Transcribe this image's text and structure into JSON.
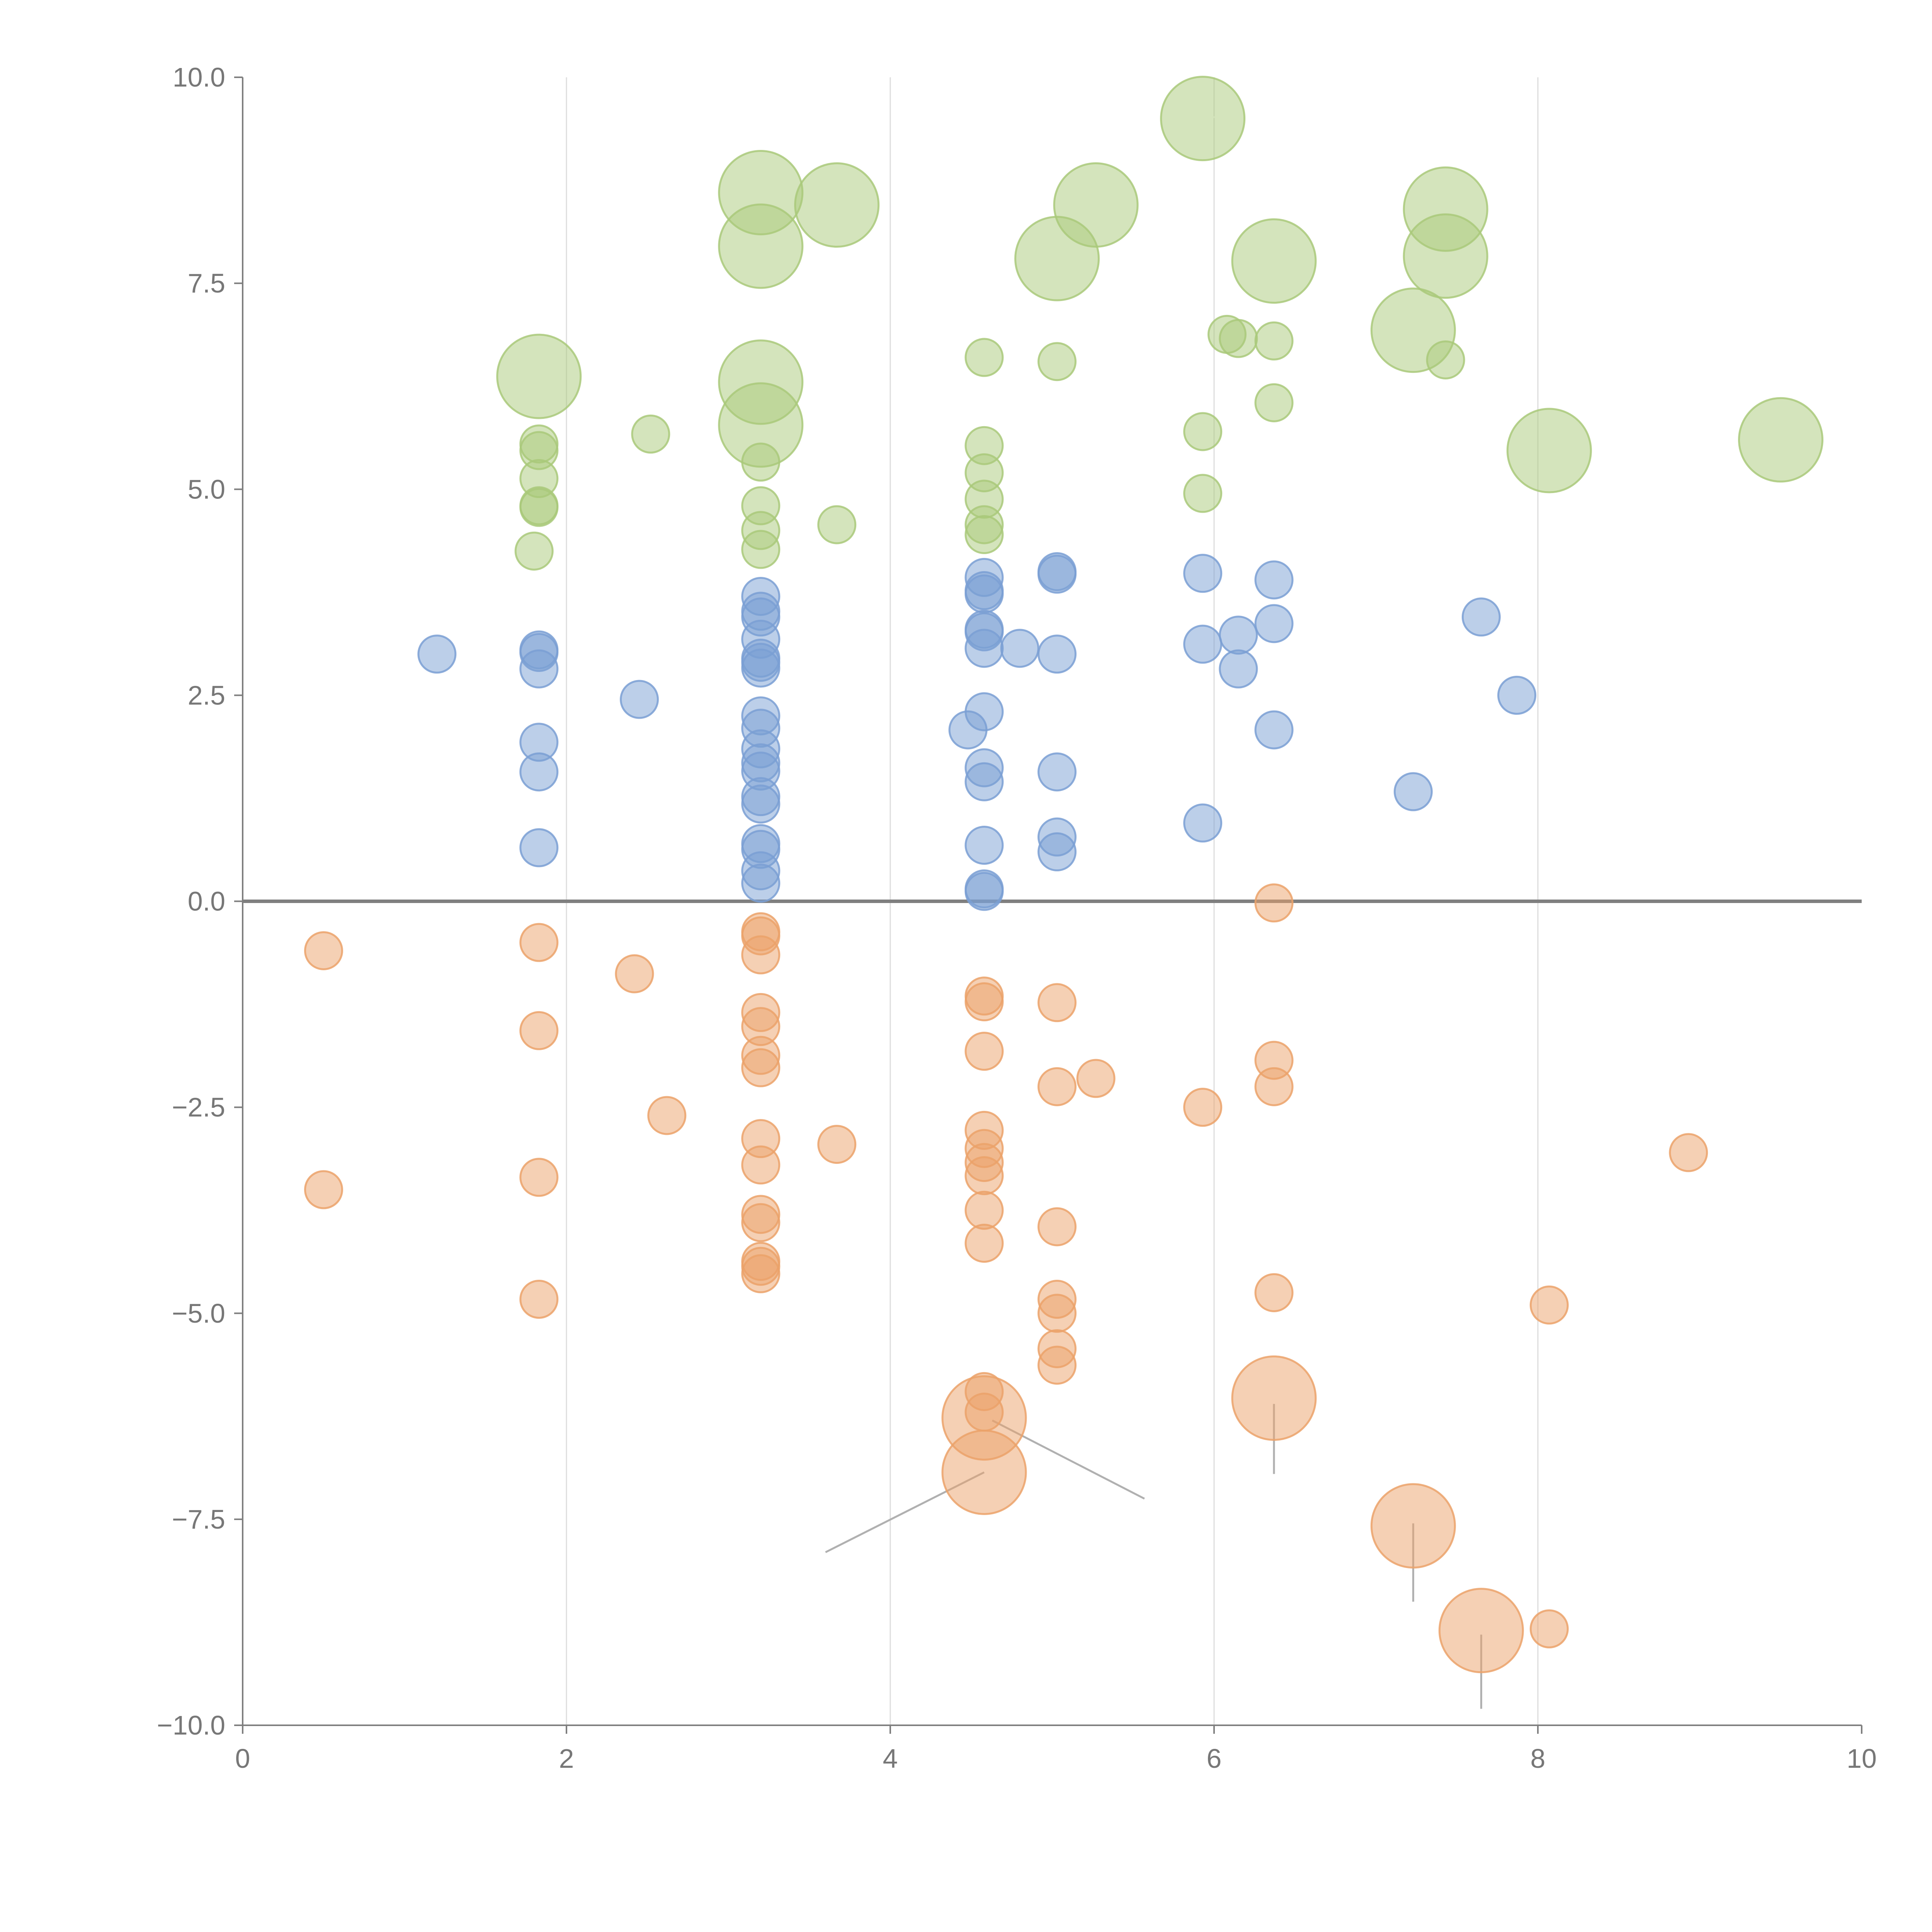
{
  "colors": {
    "green": "#a9c97a",
    "blue": "#7a9fd4",
    "orange": "#eba26a",
    "axis": "#7f7f7f",
    "grid": "#dddddd",
    "text": "#777777"
  },
  "chart_data": {
    "type": "scatter",
    "title": "",
    "xlabel": "",
    "ylabel": "",
    "xlim": [
      0,
      10
    ],
    "ylim": [
      -10,
      10
    ],
    "x_ticks": [
      "0",
      "2",
      "4",
      "6",
      "8",
      "10"
    ],
    "y_ticks": [
      "10.0",
      "7.5",
      "5.0",
      "2.5",
      "0.0",
      "−2.5",
      "−5.0",
      "−7.5",
      "−10.0"
    ],
    "grid": "vertical",
    "zero_line": true,
    "series": [
      {
        "name": "green",
        "color_key": "green",
        "points": [
          [
            5.93,
            9.5,
            3
          ],
          [
            3.2,
            8.6,
            3
          ],
          [
            3.67,
            8.45,
            3
          ],
          [
            5.27,
            8.45,
            3
          ],
          [
            7.43,
            8.4,
            3
          ],
          [
            3.2,
            7.95,
            3
          ],
          [
            5.03,
            7.8,
            3
          ],
          [
            6.37,
            7.77,
            3
          ],
          [
            7.43,
            7.83,
            3
          ],
          [
            1.83,
            6.37,
            3
          ],
          [
            3.2,
            6.3,
            3
          ],
          [
            7.23,
            6.93,
            3
          ],
          [
            3.2,
            5.78,
            3
          ],
          [
            8.07,
            5.47,
            3
          ],
          [
            9.5,
            5.6,
            3
          ],
          [
            6.08,
            6.88,
            1
          ],
          [
            6.15,
            6.83,
            1
          ],
          [
            6.37,
            6.8,
            1
          ],
          [
            4.58,
            6.6,
            1
          ],
          [
            5.03,
            6.55,
            1
          ],
          [
            7.43,
            6.57,
            1
          ],
          [
            6.37,
            6.05,
            1
          ],
          [
            2.52,
            5.67,
            1
          ],
          [
            5.93,
            5.7,
            1
          ],
          [
            1.83,
            5.55,
            1
          ],
          [
            1.83,
            5.47,
            1
          ],
          [
            4.58,
            5.53,
            1
          ],
          [
            3.2,
            5.33,
            1
          ],
          [
            4.58,
            5.2,
            1
          ],
          [
            1.83,
            5.13,
            1
          ],
          [
            5.93,
            4.95,
            1
          ],
          [
            4.58,
            4.88,
            1
          ],
          [
            1.83,
            4.8,
            1
          ],
          [
            1.83,
            4.78,
            1
          ],
          [
            3.2,
            4.8,
            1
          ],
          [
            3.67,
            4.57,
            1
          ],
          [
            4.58,
            4.57,
            1
          ],
          [
            3.2,
            4.5,
            1
          ],
          [
            4.58,
            4.45,
            1
          ],
          [
            3.2,
            4.27,
            1
          ],
          [
            1.8,
            4.25,
            1
          ]
        ]
      },
      {
        "name": "blue",
        "color_key": "blue",
        "points": [
          [
            5.03,
            4.0,
            1
          ],
          [
            5.03,
            3.97,
            1
          ],
          [
            5.93,
            3.98,
            1
          ],
          [
            4.58,
            3.93,
            1
          ],
          [
            6.37,
            3.9,
            1
          ],
          [
            4.58,
            3.77,
            1
          ],
          [
            4.58,
            3.73,
            1
          ],
          [
            3.2,
            3.7,
            1
          ],
          [
            3.2,
            3.52,
            1
          ],
          [
            3.2,
            3.45,
            1
          ],
          [
            7.65,
            3.45,
            1
          ],
          [
            6.37,
            3.37,
            1
          ],
          [
            4.58,
            3.3,
            1
          ],
          [
            4.58,
            3.27,
            1
          ],
          [
            6.15,
            3.23,
            1
          ],
          [
            3.2,
            3.18,
            1
          ],
          [
            5.93,
            3.12,
            1
          ],
          [
            4.58,
            3.07,
            1
          ],
          [
            4.8,
            3.07,
            1
          ],
          [
            1.83,
            3.05,
            1
          ],
          [
            1.83,
            3.02,
            1
          ],
          [
            1.2,
            3.0,
            1
          ],
          [
            5.03,
            3.0,
            1
          ],
          [
            3.2,
            2.95,
            1
          ],
          [
            3.2,
            2.9,
            1
          ],
          [
            3.2,
            2.83,
            1
          ],
          [
            1.83,
            2.82,
            1
          ],
          [
            6.15,
            2.82,
            1
          ],
          [
            7.87,
            2.5,
            1
          ],
          [
            2.45,
            2.45,
            1
          ],
          [
            4.58,
            2.3,
            1
          ],
          [
            3.2,
            2.25,
            1
          ],
          [
            3.2,
            2.1,
            1
          ],
          [
            4.48,
            2.08,
            1
          ],
          [
            6.37,
            2.08,
            1
          ],
          [
            1.83,
            1.93,
            1
          ],
          [
            3.2,
            1.85,
            1
          ],
          [
            3.2,
            1.68,
            1
          ],
          [
            3.2,
            1.58,
            1
          ],
          [
            4.58,
            1.62,
            1
          ],
          [
            5.03,
            1.57,
            1
          ],
          [
            1.83,
            1.57,
            1
          ],
          [
            4.58,
            1.45,
            1
          ],
          [
            7.23,
            1.33,
            1
          ],
          [
            3.2,
            1.27,
            1
          ],
          [
            3.2,
            1.18,
            1
          ],
          [
            5.93,
            0.95,
            1
          ],
          [
            5.03,
            0.78,
            1
          ],
          [
            3.2,
            0.7,
            1
          ],
          [
            4.58,
            0.68,
            1
          ],
          [
            1.83,
            0.65,
            1
          ],
          [
            3.2,
            0.63,
            1
          ],
          [
            5.03,
            0.6,
            1
          ],
          [
            3.2,
            0.37,
            1
          ],
          [
            3.2,
            0.22,
            1
          ],
          [
            4.58,
            0.15,
            1
          ],
          [
            4.58,
            0.12,
            1
          ]
        ]
      },
      {
        "name": "orange",
        "color_key": "orange",
        "points": [
          [
            6.37,
            -0.02,
            1
          ],
          [
            3.2,
            -0.37,
            1
          ],
          [
            3.2,
            -0.42,
            1
          ],
          [
            1.83,
            -0.5,
            1
          ],
          [
            0.5,
            -0.6,
            1
          ],
          [
            3.2,
            -0.65,
            1
          ],
          [
            2.42,
            -0.88,
            1
          ],
          [
            4.58,
            -1.15,
            1
          ],
          [
            4.58,
            -1.22,
            1
          ],
          [
            5.03,
            -1.23,
            1
          ],
          [
            3.2,
            -1.35,
            1
          ],
          [
            3.2,
            -1.52,
            1
          ],
          [
            1.83,
            -1.57,
            1
          ],
          [
            4.58,
            -1.82,
            1
          ],
          [
            3.2,
            -1.87,
            1
          ],
          [
            6.37,
            -1.93,
            1
          ],
          [
            3.2,
            -2.02,
            1
          ],
          [
            5.27,
            -2.15,
            1
          ],
          [
            5.03,
            -2.25,
            1
          ],
          [
            6.37,
            -2.25,
            1
          ],
          [
            5.93,
            -2.5,
            1
          ],
          [
            2.62,
            -2.6,
            1
          ],
          [
            4.58,
            -2.78,
            1
          ],
          [
            3.2,
            -2.88,
            1
          ],
          [
            3.67,
            -2.95,
            1
          ],
          [
            4.58,
            -3.0,
            1
          ],
          [
            8.93,
            -3.05,
            1
          ],
          [
            4.58,
            -3.17,
            1
          ],
          [
            3.2,
            -3.2,
            1
          ],
          [
            4.58,
            -3.33,
            1
          ],
          [
            1.83,
            -3.35,
            1
          ],
          [
            0.5,
            -3.5,
            1
          ],
          [
            4.58,
            -3.75,
            1
          ],
          [
            3.2,
            -3.8,
            1
          ],
          [
            3.2,
            -3.9,
            1
          ],
          [
            5.03,
            -3.95,
            1
          ],
          [
            4.58,
            -4.15,
            1
          ],
          [
            3.2,
            -4.37,
            1
          ],
          [
            3.2,
            -4.43,
            1
          ],
          [
            3.2,
            -4.52,
            1
          ],
          [
            6.37,
            -4.75,
            1
          ],
          [
            1.83,
            -4.83,
            1
          ],
          [
            5.03,
            -4.83,
            1
          ],
          [
            8.07,
            -4.9,
            1
          ],
          [
            5.03,
            -5.0,
            1
          ],
          [
            5.03,
            -5.43,
            1
          ],
          [
            5.03,
            -5.63,
            1
          ],
          [
            4.58,
            -5.95,
            1
          ],
          [
            4.58,
            -6.2,
            1
          ],
          [
            8.07,
            -8.83,
            1
          ],
          [
            4.58,
            -6.27,
            3
          ],
          [
            6.37,
            -6.03,
            3
          ],
          [
            4.58,
            -6.93,
            3
          ],
          [
            7.23,
            -7.58,
            3
          ],
          [
            7.65,
            -8.85,
            3
          ]
        ]
      }
    ],
    "annotations": [
      {
        "label": "",
        "from": [
          4.63,
          -6.3
        ],
        "to": [
          5.57,
          -7.25
        ]
      },
      {
        "label": "",
        "from": [
          4.58,
          -6.93
        ],
        "to": [
          3.6,
          -7.9
        ]
      },
      {
        "label": "",
        "from": [
          6.37,
          -6.1
        ],
        "to": [
          6.37,
          -6.95
        ]
      },
      {
        "label": "",
        "from": [
          7.23,
          -7.55
        ],
        "to": [
          7.23,
          -8.5
        ]
      },
      {
        "label": "",
        "from": [
          7.65,
          -8.9
        ],
        "to": [
          7.65,
          -9.8
        ]
      }
    ]
  }
}
